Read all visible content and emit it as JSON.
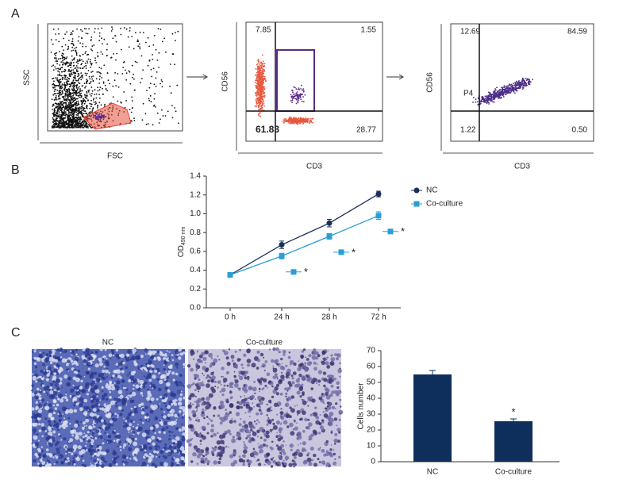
{
  "panel_labels": [
    "A",
    "B",
    "C"
  ],
  "flow": [
    {
      "x_label": "FSC",
      "y_label": "SSC"
    },
    {
      "x_label": "CD3",
      "y_label": "CD56",
      "quadrants": [
        "7.85",
        "1.55",
        "61.83",
        "28.77"
      ]
    },
    {
      "x_label": "CD3",
      "y_label": "CD56",
      "quadrants": [
        "12.69",
        "84.59",
        "1.22",
        "0.50"
      ],
      "gate": "P4"
    }
  ],
  "images": [
    "NC",
    "Co-culture"
  ],
  "chart_data": [
    {
      "type": "line",
      "categories": [
        "0 h",
        "24 h",
        "28 h",
        "72 h"
      ],
      "y_label": "OD",
      "y_label_sub": "490 nm",
      "ylim": [
        0,
        1.4
      ],
      "yticks": [
        {
          "value": 0,
          "label": "0.0"
        },
        0.2,
        0.4,
        0.6,
        0.8,
        {
          "value": 1,
          "label": "1.0"
        },
        1.2,
        1.4
      ],
      "series": [
        {
          "name": "NC",
          "color": "#1b2f5c",
          "values": [
            0.35,
            0.67,
            0.9,
            1.21
          ],
          "errors": [
            0.02,
            0.04,
            0.04,
            0.03
          ]
        },
        {
          "name": "Co-culture",
          "color": "#2a9fd6",
          "values": [
            0.35,
            0.55,
            0.76,
            0.98
          ],
          "errors": [
            0.02,
            0.03,
            0.03,
            0.04
          ]
        }
      ],
      "annotations": [
        "*",
        "*",
        "*"
      ]
    },
    {
      "type": "bar",
      "categories": [
        "NC",
        "Co-culture"
      ],
      "values": [
        55,
        25.5
      ],
      "errors": [
        2.5,
        1.5
      ],
      "color": "#0e2f5b",
      "y_label": "Cells number",
      "ylim": [
        0,
        70
      ],
      "yticks": [
        0,
        10,
        20,
        30,
        40,
        50,
        60,
        70
      ],
      "annotations": [
        "*"
      ]
    }
  ]
}
